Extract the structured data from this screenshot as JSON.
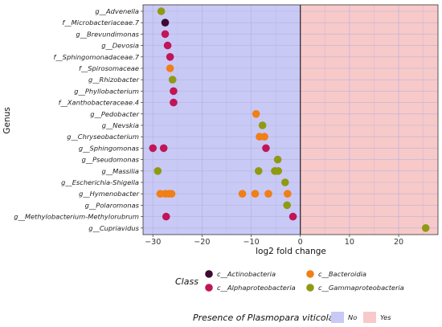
{
  "chart_data": {
    "type": "scatter",
    "xlabel": "log2 fold change",
    "ylabel": "Genus",
    "xlim": [
      -32,
      28
    ],
    "x_ticks": [
      -30,
      -20,
      -10,
      0,
      10,
      20
    ],
    "x_tick_labels": [
      "−30",
      "−20",
      "−10",
      "0",
      "10",
      "20"
    ],
    "grid": true,
    "categories": [
      "g__Advenella",
      "f__Microbacteriaceae.7",
      "g__Brevundimonas",
      "g__Devosia",
      "f__Sphingomonadaceae.7",
      "f__Spirosomaceae",
      "g__Rhizobacter",
      "g__Phyllobacterium",
      "f__Xanthobacteraceae.4",
      "g__Pedobacter",
      "g__Nevskia",
      "g__Chryseobacterium",
      "g__Sphingomonas",
      "g__Pseudomonas",
      "g__Massilia",
      "g__Escherichia-Shigella",
      "g__Hymenobacter",
      "g__Polaromonas",
      "g__Methylobacterium-Methylorubrum",
      "g__Cupriavidus"
    ],
    "series": [
      {
        "name": "c__Actinobacteria",
        "color": "#3d0a33",
        "points": [
          {
            "genus": "f__Microbacteriaceae.7",
            "x": -27.5
          }
        ]
      },
      {
        "name": "c__Alphaproteobacteria",
        "color": "#c01657",
        "points": [
          {
            "genus": "g__Brevundimonas",
            "x": -27.5
          },
          {
            "genus": "g__Devosia",
            "x": -27.0
          },
          {
            "genus": "f__Sphingomonadaceae.7",
            "x": -26.5
          },
          {
            "genus": "g__Phyllobacterium",
            "x": -25.8
          },
          {
            "genus": "f__Xanthobacteraceae.4",
            "x": -25.8
          },
          {
            "genus": "g__Sphingomonas",
            "x": -30.0
          },
          {
            "genus": "g__Sphingomonas",
            "x": -27.8
          },
          {
            "genus": "g__Sphingomonas",
            "x": -7.0
          },
          {
            "genus": "g__Methylobacterium-Methylorubrum",
            "x": -27.3
          },
          {
            "genus": "g__Methylobacterium-Methylorubrum",
            "x": -1.5
          }
        ]
      },
      {
        "name": "c__Bacteroidia",
        "color": "#f07f15",
        "points": [
          {
            "genus": "f__Spirosomaceae",
            "x": -26.5
          },
          {
            "genus": "g__Pedobacter",
            "x": -9.0
          },
          {
            "genus": "g__Chryseobacterium",
            "x": -8.3
          },
          {
            "genus": "g__Chryseobacterium",
            "x": -7.3
          },
          {
            "genus": "g__Hymenobacter",
            "x": -28.5
          },
          {
            "genus": "g__Hymenobacter",
            "x": -27.5
          },
          {
            "genus": "g__Hymenobacter",
            "x": -26.8
          },
          {
            "genus": "g__Hymenobacter",
            "x": -26.2
          },
          {
            "genus": "g__Hymenobacter",
            "x": -11.8
          },
          {
            "genus": "g__Hymenobacter",
            "x": -9.2
          },
          {
            "genus": "g__Hymenobacter",
            "x": -6.5
          },
          {
            "genus": "g__Hymenobacter",
            "x": -2.6
          }
        ]
      },
      {
        "name": "c__Gammaproteobacteria",
        "color": "#8f9a13",
        "points": [
          {
            "genus": "g__Advenella",
            "x": -28.3
          },
          {
            "genus": "g__Rhizobacter",
            "x": -26.0
          },
          {
            "genus": "g__Nevskia",
            "x": -7.7
          },
          {
            "genus": "g__Pseudomonas",
            "x": -4.6
          },
          {
            "genus": "g__Massilia",
            "x": -29.0
          },
          {
            "genus": "g__Massilia",
            "x": -8.5
          },
          {
            "genus": "g__Massilia",
            "x": -5.2
          },
          {
            "genus": "g__Massilia",
            "x": -4.5
          },
          {
            "genus": "g__Escherichia-Shigella",
            "x": -3.1
          },
          {
            "genus": "g__Polaromonas",
            "x": -2.7
          },
          {
            "genus": "g__Cupriavidus",
            "x": 25.5
          }
        ]
      }
    ],
    "background_regions": [
      {
        "label": "No",
        "from": -32,
        "to": 0,
        "color": "#c9c9f6"
      },
      {
        "label": "Yes",
        "from": 0,
        "to": 28,
        "color": "#f8c9c9"
      }
    ],
    "legend": {
      "color_title": "Class",
      "fill_title": "Presence of Plasmopara viticola",
      "placement": "bottom"
    }
  }
}
